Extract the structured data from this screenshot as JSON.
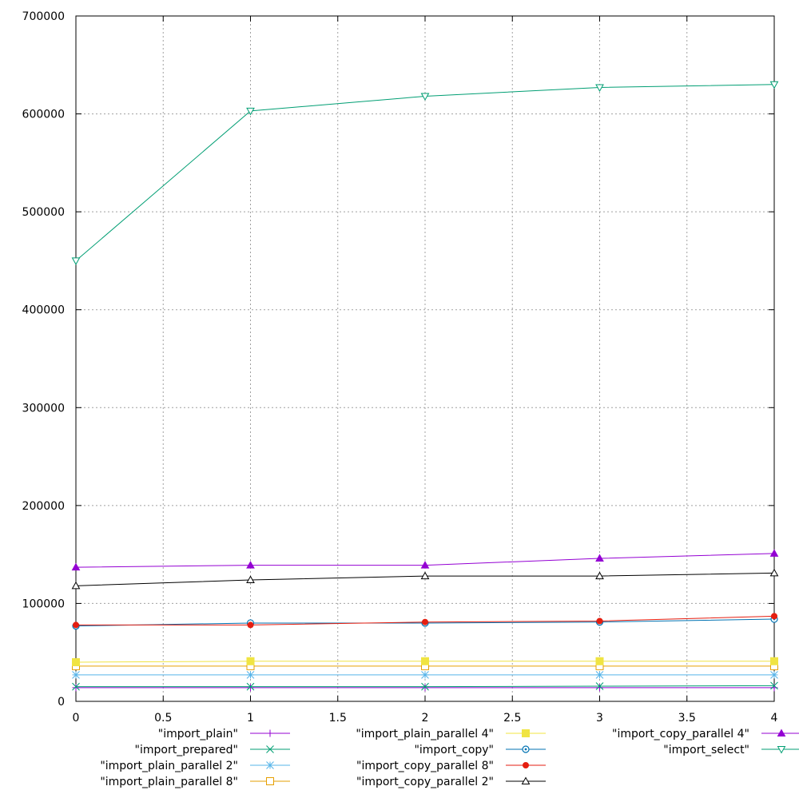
{
  "chart_data": {
    "type": "line",
    "title": "",
    "xlabel": "",
    "ylabel": "",
    "xlim": [
      0,
      4
    ],
    "ylim": [
      0,
      700000
    ],
    "x_ticks": [
      0,
      0.5,
      1,
      1.5,
      2,
      2.5,
      3,
      3.5,
      4
    ],
    "y_ticks": [
      0,
      100000,
      200000,
      300000,
      400000,
      500000,
      600000,
      700000
    ],
    "grid": true,
    "legend_position": "bottom",
    "x": [
      0,
      1,
      2,
      3,
      4
    ],
    "series": [
      {
        "name": "\"import_plain\"",
        "color": "#9400d3",
        "marker": "plus",
        "values": [
          14000,
          14000,
          14000,
          14000,
          14000
        ]
      },
      {
        "name": "\"import_prepared\"",
        "color": "#009e73",
        "marker": "cross",
        "values": [
          15000,
          15000,
          15000,
          15500,
          16000
        ]
      },
      {
        "name": "\"import_plain_parallel 2\"",
        "color": "#56b4e9",
        "marker": "star",
        "values": [
          27000,
          27000,
          27000,
          27000,
          27000
        ]
      },
      {
        "name": "\"import_plain_parallel 8\"",
        "color": "#e69f00",
        "marker": "square-open",
        "values": [
          36000,
          36000,
          36000,
          36000,
          36000
        ]
      },
      {
        "name": "\"import_plain_parallel 4\"",
        "color": "#f0e442",
        "marker": "square-filled",
        "values": [
          40000,
          41000,
          41000,
          41000,
          41000
        ]
      },
      {
        "name": "\"import_copy\"",
        "color": "#0072b2",
        "marker": "circle-dot",
        "values": [
          77000,
          80000,
          80000,
          81000,
          84000
        ]
      },
      {
        "name": "\"import_copy_parallel 8\"",
        "color": "#e51e10",
        "marker": "circle-filled",
        "values": [
          78000,
          78000,
          81000,
          82000,
          87000
        ]
      },
      {
        "name": "\"import_copy_parallel 2\"",
        "color": "#000000",
        "marker": "triangle-open",
        "values": [
          118000,
          124000,
          128000,
          128000,
          131000
        ]
      },
      {
        "name": "\"import_copy_parallel 4\"",
        "color": "#9400d3",
        "marker": "triangle-filled",
        "values": [
          137000,
          139000,
          139000,
          146000,
          151000
        ]
      },
      {
        "name": "\"import_select\"",
        "color": "#009e73",
        "marker": "triangle-down-open",
        "values": [
          450000,
          603000,
          618000,
          627000,
          630000
        ]
      }
    ]
  }
}
